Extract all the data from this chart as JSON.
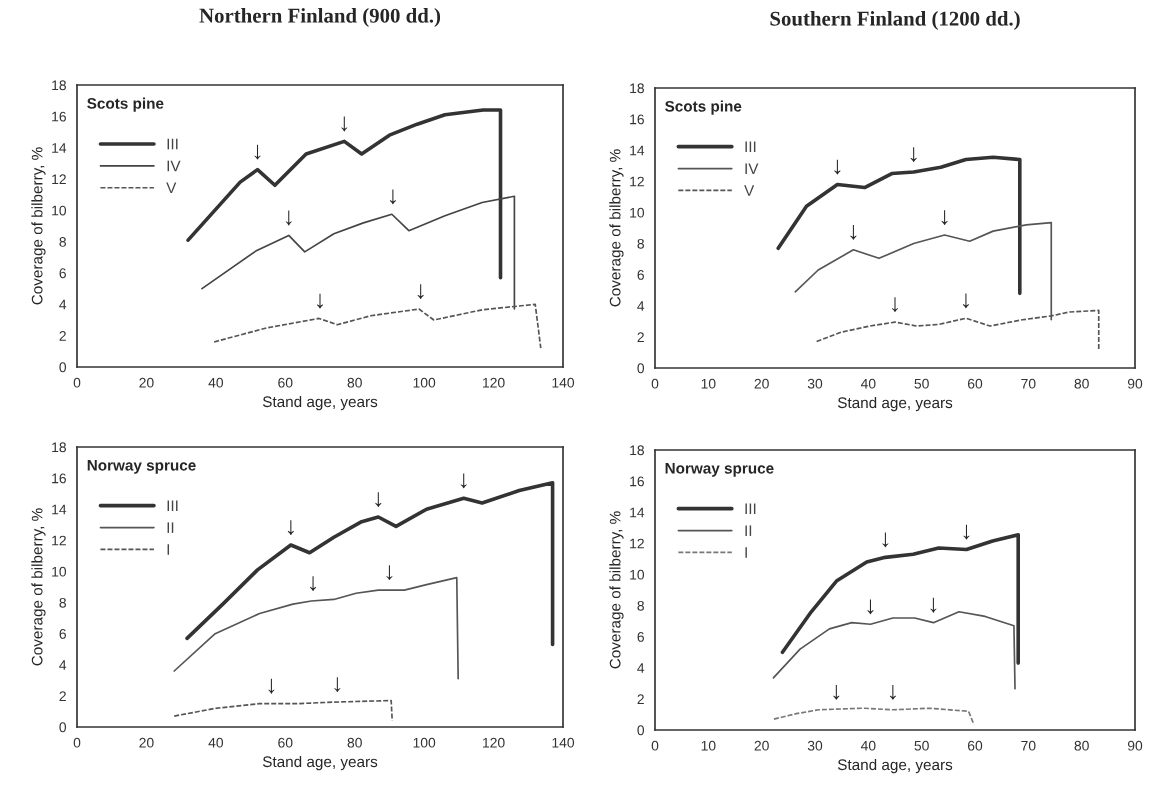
{
  "chart_data": [
    {
      "type": "line",
      "title": "Northern Finland (900 dd.)",
      "subtitle": "Scots pine",
      "xlabel": "Stand age, years",
      "ylabel": "Coverage of bilberry, %",
      "xlim": [
        0,
        140
      ],
      "xticks": [
        0,
        20,
        40,
        60,
        80,
        100,
        120,
        140
      ],
      "ylim": [
        0,
        18
      ],
      "yticks": [
        0,
        2,
        4,
        6,
        8,
        10,
        12,
        14,
        16,
        18
      ],
      "grid": false,
      "legend": "top left",
      "marker": "none",
      "series": [
        {
          "name": "III",
          "color": "#333333",
          "line_style": "solid",
          "x": [
            32,
            47,
            52,
            57,
            66,
            77,
            82,
            90,
            98,
            106,
            117,
            122,
            122
          ],
          "values": [
            8.1,
            11.8,
            12.6,
            11.6,
            13.6,
            14.4,
            13.6,
            14.8,
            15.5,
            16.1,
            16.4,
            16.4,
            5.7
          ]
        },
        {
          "name": "IV",
          "color": "#444444",
          "line_style": "solid",
          "x": [
            36,
            51.5,
            61,
            65.6,
            74,
            82.5,
            90.7,
            95.6,
            106,
            116.7,
            126,
            126
          ],
          "values": [
            5.0,
            7.4,
            8.4,
            7.35,
            8.5,
            9.2,
            9.75,
            8.7,
            9.65,
            10.5,
            10.9,
            3.7
          ]
        },
        {
          "name": "V",
          "color": "#555555",
          "line_style": "dashed",
          "x": [
            39.5,
            54.7,
            69.7,
            75,
            84.6,
            98.5,
            102.8,
            116.7,
            132,
            133.6
          ],
          "values": [
            1.6,
            2.5,
            3.1,
            2.7,
            3.27,
            3.7,
            3.0,
            3.65,
            4.0,
            1.2
          ]
        }
      ],
      "annotations": [
        {
          "text": "↓",
          "x": 52,
          "y": 12.6
        },
        {
          "text": "↓",
          "x": 77,
          "y": 14.4
        },
        {
          "text": "↓",
          "x": 61,
          "y": 8.4
        },
        {
          "text": "↓",
          "x": 91,
          "y": 9.75
        },
        {
          "text": "↓",
          "x": 70,
          "y": 3.1
        },
        {
          "text": "↓",
          "x": 99,
          "y": 3.7
        }
      ]
    },
    {
      "type": "line",
      "title": "Southern Finland (1200 dd.)",
      "subtitle": "Scots pine",
      "xlabel": "Stand age, years",
      "ylabel": "Coverage of bilberry, %",
      "xlim": [
        0,
        90
      ],
      "xticks": [
        0,
        10,
        20,
        30,
        40,
        50,
        60,
        70,
        80,
        90
      ],
      "ylim": [
        0,
        18
      ],
      "yticks": [
        0,
        2,
        4,
        6,
        8,
        10,
        12,
        14,
        16,
        18
      ],
      "grid": false,
      "legend": "top left",
      "marker": "none",
      "series": [
        {
          "name": "III",
          "color": "#333333",
          "line_style": "solid",
          "x": [
            23.1,
            28.4,
            34.2,
            39.3,
            44.4,
            48.5,
            53.6,
            58.3,
            63.4,
            68.4,
            68.4
          ],
          "values": [
            7.7,
            10.4,
            11.8,
            11.6,
            12.5,
            12.6,
            12.9,
            13.4,
            13.55,
            13.4,
            4.8
          ]
        },
        {
          "name": "IV",
          "color": "#555555",
          "line_style": "solid",
          "x": [
            26.3,
            30.6,
            37.2,
            42,
            48.5,
            54.3,
            59,
            63.4,
            69.6,
            74.3,
            74.3
          ],
          "values": [
            4.9,
            6.3,
            7.6,
            7.05,
            8.0,
            8.55,
            8.15,
            8.8,
            9.2,
            9.35,
            3.1
          ]
        },
        {
          "name": "V",
          "color": "#555555",
          "line_style": "dashed",
          "x": [
            30.3,
            34.9,
            40.3,
            45,
            49.1,
            53.2,
            58.3,
            62.8,
            68.9,
            74.3,
            77.7,
            83.2,
            83.2
          ],
          "values": [
            1.7,
            2.3,
            2.7,
            2.95,
            2.7,
            2.8,
            3.2,
            2.7,
            3.1,
            3.35,
            3.6,
            3.7,
            1.2
          ]
        }
      ],
      "annotations": [
        {
          "text": "↓",
          "x": 34.2,
          "y": 11.8
        },
        {
          "text": "↓",
          "x": 48.5,
          "y": 12.6
        },
        {
          "text": "↓",
          "x": 37.2,
          "y": 7.6
        },
        {
          "text": "↓",
          "x": 54.3,
          "y": 8.55
        },
        {
          "text": "↓",
          "x": 45,
          "y": 2.95
        },
        {
          "text": "↓",
          "x": 58.3,
          "y": 3.2
        }
      ]
    },
    {
      "type": "line",
      "subtitle": "Norway spruce",
      "xlabel": "Stand age, years",
      "ylabel": "Coverage of bilberry, %",
      "xlim": [
        0,
        140
      ],
      "xticks": [
        0,
        20,
        40,
        60,
        80,
        100,
        120,
        140
      ],
      "ylim": [
        0,
        18
      ],
      "yticks": [
        0,
        2,
        4,
        6,
        8,
        10,
        12,
        14,
        16,
        18
      ],
      "grid": false,
      "legend": "top left",
      "marker": "none",
      "series": [
        {
          "name": "III",
          "color": "#333333",
          "line_style": "solid",
          "x": [
            31.7,
            42,
            52,
            61.6,
            67,
            74,
            82,
            86.8,
            91.9,
            100.7,
            111.4,
            116.7,
            127.4,
            137,
            137
          ],
          "values": [
            5.7,
            7.9,
            10.1,
            11.7,
            11.2,
            12.2,
            13.2,
            13.5,
            12.9,
            14.0,
            14.7,
            14.4,
            15.2,
            15.7,
            5.3
          ]
        },
        {
          "name": "II",
          "color": "#555555",
          "line_style": "solid",
          "x": [
            28,
            39.8,
            52.6,
            62.2,
            67.5,
            74,
            80.4,
            86.8,
            94.3,
            100.7,
            109.4,
            109.8
          ],
          "values": [
            3.6,
            6.0,
            7.3,
            7.9,
            8.1,
            8.2,
            8.6,
            8.8,
            8.8,
            9.15,
            9.6,
            3.1
          ]
        },
        {
          "name": "I",
          "color": "#555555",
          "line_style": "dashed",
          "x": [
            28,
            39.8,
            52.6,
            63.3,
            74,
            90.5,
            90.8
          ],
          "values": [
            0.7,
            1.2,
            1.5,
            1.5,
            1.6,
            1.7,
            0.4
          ]
        }
      ],
      "annotations": [
        {
          "text": "↓",
          "x": 61.6,
          "y": 11.7
        },
        {
          "text": "↓",
          "x": 86.8,
          "y": 13.5
        },
        {
          "text": "↓",
          "x": 111.4,
          "y": 14.7
        },
        {
          "text": "↓",
          "x": 68,
          "y": 8.1
        },
        {
          "text": "↓",
          "x": 90,
          "y": 8.8
        },
        {
          "text": "↓",
          "x": 56,
          "y": 1.5
        },
        {
          "text": "↓",
          "x": 75,
          "y": 1.6
        }
      ]
    },
    {
      "type": "line",
      "subtitle": "Norway spruce",
      "xlabel": "Stand age, years",
      "ylabel": "Coverage of bilberry, %",
      "xlim": [
        0,
        90
      ],
      "xticks": [
        0,
        10,
        20,
        30,
        40,
        50,
        60,
        70,
        80,
        90
      ],
      "ylim": [
        0,
        18
      ],
      "yticks": [
        0,
        2,
        4,
        6,
        8,
        10,
        12,
        14,
        16,
        18
      ],
      "grid": false,
      "legend": "top left",
      "marker": "none",
      "series": [
        {
          "name": "III",
          "color": "#333333",
          "line_style": "solid",
          "x": [
            23.9,
            29.3,
            34.1,
            39.7,
            43.2,
            48.4,
            53.2,
            58.4,
            63.3,
            68.1,
            68.1
          ],
          "values": [
            5.0,
            7.6,
            9.6,
            10.8,
            11.1,
            11.3,
            11.7,
            11.6,
            12.15,
            12.55,
            4.3
          ]
        },
        {
          "name": "II",
          "color": "#555555",
          "line_style": "solid",
          "x": [
            22.2,
            27.2,
            32.7,
            36.9,
            40.4,
            44.6,
            48.7,
            52.2,
            57,
            61.9,
            67.3,
            67.5
          ],
          "values": [
            3.35,
            5.2,
            6.5,
            6.9,
            6.8,
            7.2,
            7.2,
            6.9,
            7.6,
            7.3,
            6.7,
            2.65
          ]
        },
        {
          "name": "I",
          "color": "#777777",
          "line_style": "dashed",
          "x": [
            22.3,
            26.5,
            30.7,
            39,
            44.6,
            51.5,
            58.8,
            59.8
          ],
          "values": [
            0.7,
            1.05,
            1.3,
            1.4,
            1.3,
            1.4,
            1.2,
            0.35
          ]
        }
      ],
      "annotations": [
        {
          "text": "↓",
          "x": 43.2,
          "y": 11.1
        },
        {
          "text": "↓",
          "x": 58.4,
          "y": 11.6
        },
        {
          "text": "↓",
          "x": 40.4,
          "y": 6.8
        },
        {
          "text": "↓",
          "x": 52.2,
          "y": 6.9
        },
        {
          "text": "↓",
          "x": 34,
          "y": 1.3
        },
        {
          "text": "↓",
          "x": 44.6,
          "y": 1.3
        }
      ]
    }
  ]
}
